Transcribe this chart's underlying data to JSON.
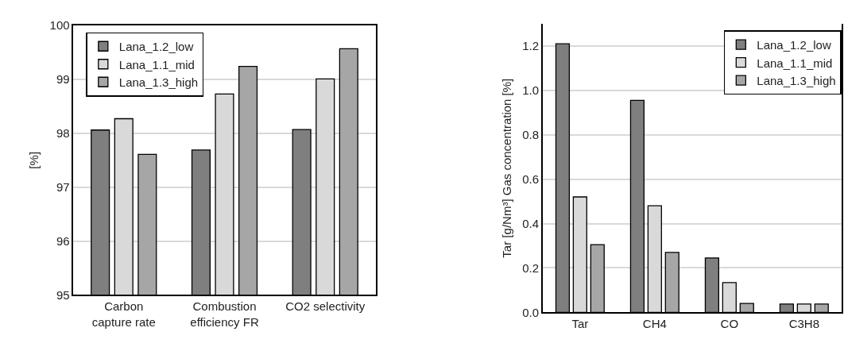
{
  "chart_data": [
    {
      "type": "bar",
      "ylabel": "[%]",
      "categories": [
        "Carbon capture rate",
        "Combustion efficiency FR",
        "CO2 selectivity"
      ],
      "series": [
        {
          "name": "Lana_1.2_low",
          "color": "#7f7f7f",
          "values": [
            98.06,
            97.69,
            98.07
          ]
        },
        {
          "name": "Lana_1.1_mid",
          "color": "#d9d9d9",
          "values": [
            98.27,
            98.73,
            99.01
          ]
        },
        {
          "name": "Lana_1.3_high",
          "color": "#a6a6a6",
          "values": [
            97.61,
            99.24,
            99.57
          ]
        }
      ],
      "ylim": [
        95,
        100
      ],
      "yticks": [
        95,
        96,
        97,
        98,
        99,
        100
      ],
      "grid": "y",
      "legend": "top left"
    },
    {
      "type": "bar",
      "ylabel": "Tar [g/Nm³] Gas concentration [%]",
      "categories": [
        "Tar",
        "CH4",
        "CO",
        "C3H8"
      ],
      "series": [
        {
          "name": "Lana_1.2_low",
          "color": "#7f7f7f",
          "values": [
            1.21,
            0.955,
            0.245,
            0.037
          ]
        },
        {
          "name": "Lana_1.1_mid",
          "color": "#d9d9d9",
          "values": [
            0.52,
            0.48,
            0.134,
            0.037
          ]
        },
        {
          "name": "Lana_1.3_high",
          "color": "#a6a6a6",
          "values": [
            0.305,
            0.27,
            0.04,
            0.037
          ]
        }
      ],
      "ylim": [
        0,
        1.3
      ],
      "yticks": [
        {
          "value": 0,
          "label": "0.0"
        },
        {
          "value": 0.2,
          "label": "0.2"
        },
        {
          "value": 0.4,
          "label": "0.4"
        },
        {
          "value": 0.6,
          "label": "0.6"
        },
        {
          "value": 0.8,
          "label": "0.8"
        },
        {
          "value": 1.0,
          "label": "1.0"
        },
        {
          "value": 1.2,
          "label": "1.2"
        }
      ],
      "grid": "y",
      "legend": "top right"
    }
  ]
}
